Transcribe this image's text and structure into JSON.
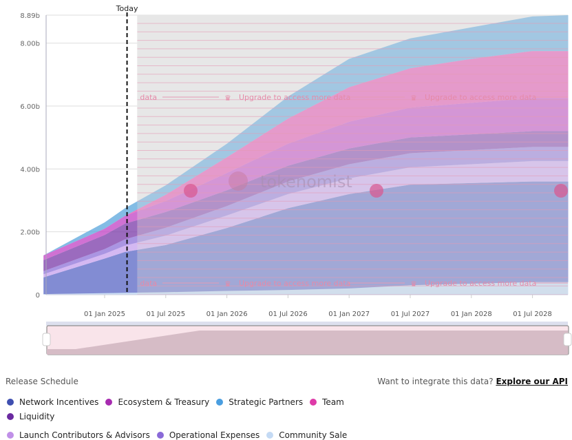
{
  "chart_data": {
    "type": "area",
    "stacked": true,
    "title": "Release Schedule",
    "today_label": "Today",
    "x_months_from": "2024-07",
    "x": [
      0,
      6,
      8,
      12,
      18,
      24,
      30,
      36,
      42,
      48,
      51.5
    ],
    "today_month": 8.2,
    "paywall_from_month": 9.2,
    "ylim": [
      0,
      8.89
    ],
    "yticks": [
      {
        "v": 0,
        "label": "0"
      },
      {
        "v": 2,
        "label": "2.00b"
      },
      {
        "v": 4,
        "label": "4.00b"
      },
      {
        "v": 6,
        "label": "6.00b"
      },
      {
        "v": 8,
        "label": "8.00b"
      },
      {
        "v": 8.89,
        "label": "8.89b"
      }
    ],
    "xticks": [
      {
        "m": 6,
        "label": "01 Jan 2025"
      },
      {
        "m": 12,
        "label": "01 Jul 2025"
      },
      {
        "m": 18,
        "label": "01 Jan 2026"
      },
      {
        "m": 24,
        "label": "01 Jul 2026"
      },
      {
        "m": 30,
        "label": "01 Jan 2027"
      },
      {
        "m": 36,
        "label": "01 Jul 2027"
      },
      {
        "m": 42,
        "label": "01 Jan 2028"
      },
      {
        "m": 48,
        "label": "01 Jul 2028"
      }
    ],
    "series": [
      {
        "name": "Community Sale",
        "color": "#b9d4f2",
        "values": [
          0.02,
          0.05,
          0.06,
          0.08,
          0.12,
          0.15,
          0.2,
          0.3,
          0.35,
          0.4,
          0.4
        ]
      },
      {
        "name": "Network Incentives",
        "color": "#5866c4",
        "values": [
          0.53,
          1.1,
          1.3,
          1.5,
          2.0,
          2.6,
          3.0,
          3.2,
          3.2,
          3.2,
          3.2
        ]
      },
      {
        "name": "Launch Contributors & Advisors",
        "color": "#c6a0ee",
        "values": [
          0.1,
          0.15,
          0.2,
          0.3,
          0.4,
          0.45,
          0.5,
          0.55,
          0.6,
          0.65,
          0.65
        ]
      },
      {
        "name": "Operational Expenses",
        "color": "#8d72d8",
        "values": [
          0.1,
          0.15,
          0.2,
          0.25,
          0.3,
          0.4,
          0.45,
          0.45,
          0.45,
          0.45,
          0.45
        ]
      },
      {
        "name": "Liquidity",
        "color": "#7a3aa8",
        "values": [
          0.35,
          0.45,
          0.5,
          0.5,
          0.5,
          0.5,
          0.5,
          0.5,
          0.5,
          0.5,
          0.5
        ]
      },
      {
        "name": "Ecosystem & Treasury",
        "color": "#c042c4",
        "values": [
          0.15,
          0.2,
          0.25,
          0.35,
          0.55,
          0.7,
          0.85,
          0.95,
          1.0,
          1.05,
          1.05
        ]
      },
      {
        "name": "Team",
        "color": "#e24aae",
        "values": [
          0,
          0,
          0,
          0.2,
          0.5,
          0.8,
          1.1,
          1.25,
          1.4,
          1.5,
          1.5
        ]
      },
      {
        "name": "Strategic Partners",
        "color": "#5aa6dc",
        "values": [
          0,
          0.2,
          0.24,
          0.3,
          0.43,
          0.7,
          0.9,
          0.95,
          1.0,
          1.1,
          1.14
        ]
      }
    ]
  },
  "paywall": {
    "text": "Upgrade to access more data",
    "partial": "data",
    "watermark": "tokenomist"
  },
  "footer": {
    "title": "Release Schedule",
    "question": "Want to integrate this data?",
    "link": "Explore our API"
  },
  "legend": [
    {
      "name": "Network Incentives",
      "color": "#3f4fb0"
    },
    {
      "name": "Ecosystem & Treasury",
      "color": "#a72bb0"
    },
    {
      "name": "Strategic Partners",
      "color": "#4a9ee0"
    },
    {
      "name": "Team",
      "color": "#de3aa8"
    },
    {
      "name": "Liquidity",
      "color": "#6a2aa0"
    },
    {
      "name": "Launch Contributors & Advisors",
      "color": "#c090e8"
    },
    {
      "name": "Operational Expenses",
      "color": "#8a6ad8"
    },
    {
      "name": "Community Sale",
      "color": "#c4daf4"
    }
  ]
}
